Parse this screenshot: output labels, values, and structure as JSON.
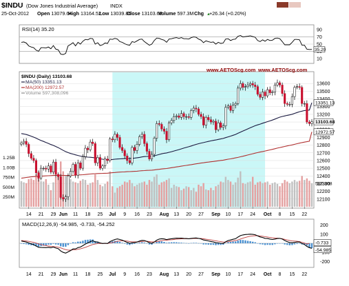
{
  "header": {
    "symbol": "$INDU",
    "name": "(Dow Jones Industrial Average)",
    "exchange": "INDX",
    "date": "25-Oct-2012",
    "stats": [
      {
        "label": "Open",
        "value": "13079.64"
      },
      {
        "label": "High",
        "value": "13164.52"
      },
      {
        "label": "Low",
        "value": "13039.86"
      },
      {
        "label": "Close",
        "value": "13103.68"
      },
      {
        "label": "Volume",
        "value": "597.3M"
      },
      {
        "label": "Chg",
        "value": "+26.34 (+0.20%)"
      }
    ],
    "change_arrow": "▲",
    "swatch_colors": [
      "#8b3a2a",
      "#e8c8c0"
    ]
  },
  "rsi_panel": {
    "legend": "RSI(14) 35.20",
    "last_label": "35.20",
    "tick_labels": [
      "90",
      "70",
      "50",
      "30",
      "10"
    ]
  },
  "price_panel": {
    "legend": [
      {
        "text": "$INDU (Daily) 13103.68",
        "color": "#000000"
      },
      {
        "text": "MA(50) 13351.13",
        "color": "#1a1a40"
      },
      {
        "text": "MA(200) 12972.57",
        "color": "#b03030"
      },
      {
        "text": "Volume 597,308,096",
        "color": "#888888"
      }
    ],
    "watermark": "www.AETOScg.com",
    "y_tick_labels": [
      "13600",
      "13500",
      "13400",
      "13300",
      "13200",
      "13100",
      "13000",
      "12900",
      "12800",
      "12700",
      "12600",
      "12500",
      "12400",
      "12300",
      "12200",
      "12100"
    ],
    "last_labels": [
      "13351.13",
      "13103.68",
      "12972.57",
      "597.308"
    ],
    "volume_tick_labels": [
      "1.25B",
      "1.00B",
      "750M",
      "500M",
      "250M"
    ]
  },
  "macd_panel": {
    "legend": "MACD(12,26,9) -54.985, -0.733, -54.252",
    "last_labels": [
      "-0.733",
      "-54.985"
    ],
    "tick_labels": [
      "200",
      "100",
      "0",
      "-100",
      "-200"
    ]
  },
  "x_axis": {
    "tick_labels": [
      "14",
      "21",
      "29",
      "Jun",
      "11",
      "18",
      "25",
      "Jul",
      "9",
      "16",
      "23",
      "Aug",
      "13",
      "20",
      "27",
      "Sep",
      "10",
      "17",
      "24",
      "Oct",
      "8",
      "15",
      "22"
    ]
  },
  "colors": {
    "up_candle": "#ffffff",
    "down_candle": "#c8102e",
    "ma50": "#1a1a40",
    "ma200": "#b03030",
    "rsi_line": "#000000",
    "volume_up": "#c0c0c0",
    "volume_down": "#e4a0a0",
    "macd_line": "#000000",
    "signal_line": "#c04040",
    "histogram": "#4a90d0",
    "highlight": "#b8f4f4",
    "watermark": "#8b0000",
    "grid": "#dcdcdc"
  },
  "chart_data": {
    "type": "candlestick",
    "price_ylim": [
      12000,
      13700
    ],
    "rsi_ylim": [
      0,
      100
    ],
    "macd_ylim": [
      -250,
      250
    ],
    "volume_ylim": [
      0,
      1400000000
    ],
    "grid": true,
    "highlight_range_dates": [
      "2012-07-02",
      "2012-09-28"
    ],
    "dates": [
      "2012-05-09",
      "2012-05-10",
      "2012-05-11",
      "2012-05-14",
      "2012-05-15",
      "2012-05-16",
      "2012-05-17",
      "2012-05-18",
      "2012-05-21",
      "2012-05-22",
      "2012-05-23",
      "2012-05-24",
      "2012-05-25",
      "2012-05-29",
      "2012-05-30",
      "2012-05-31",
      "2012-06-01",
      "2012-06-04",
      "2012-06-05",
      "2012-06-06",
      "2012-06-07",
      "2012-06-08",
      "2012-06-11",
      "2012-06-12",
      "2012-06-13",
      "2012-06-14",
      "2012-06-15",
      "2012-06-18",
      "2012-06-19",
      "2012-06-20",
      "2012-06-21",
      "2012-06-22",
      "2012-06-25",
      "2012-06-26",
      "2012-06-27",
      "2012-06-28",
      "2012-06-29",
      "2012-07-02",
      "2012-07-03",
      "2012-07-05",
      "2012-07-06",
      "2012-07-09",
      "2012-07-10",
      "2012-07-11",
      "2012-07-12",
      "2012-07-13",
      "2012-07-16",
      "2012-07-17",
      "2012-07-18",
      "2012-07-19",
      "2012-07-20",
      "2012-07-23",
      "2012-07-24",
      "2012-07-25",
      "2012-07-26",
      "2012-07-27",
      "2012-07-30",
      "2012-07-31",
      "2012-08-01",
      "2012-08-02",
      "2012-08-03",
      "2012-08-06",
      "2012-08-07",
      "2012-08-08",
      "2012-08-09",
      "2012-08-10",
      "2012-08-13",
      "2012-08-14",
      "2012-08-15",
      "2012-08-16",
      "2012-08-17",
      "2012-08-20",
      "2012-08-21",
      "2012-08-22",
      "2012-08-23",
      "2012-08-24",
      "2012-08-27",
      "2012-08-28",
      "2012-08-29",
      "2012-08-30",
      "2012-08-31",
      "2012-09-04",
      "2012-09-05",
      "2012-09-06",
      "2012-09-07",
      "2012-09-10",
      "2012-09-11",
      "2012-09-12",
      "2012-09-13",
      "2012-09-14",
      "2012-09-17",
      "2012-09-18",
      "2012-09-19",
      "2012-09-20",
      "2012-09-21",
      "2012-09-24",
      "2012-09-25",
      "2012-09-26",
      "2012-09-27",
      "2012-09-28",
      "2012-10-01",
      "2012-10-02",
      "2012-10-03",
      "2012-10-04",
      "2012-10-05",
      "2012-10-08",
      "2012-10-09",
      "2012-10-10",
      "2012-10-11",
      "2012-10-12",
      "2012-10-15",
      "2012-10-16",
      "2012-10-17",
      "2012-10-18",
      "2012-10-19",
      "2012-10-22",
      "2012-10-23",
      "2012-10-24",
      "2012-10-25"
    ],
    "close": [
      12830,
      12850,
      12810,
      12690,
      12630,
      12600,
      12440,
      12370,
      12500,
      12500,
      12490,
      12530,
      12450,
      12580,
      12420,
      12390,
      12120,
      12100,
      12130,
      12400,
      12460,
      12550,
      12410,
      12570,
      12500,
      12650,
      12760,
      12740,
      12840,
      12820,
      12570,
      12640,
      12500,
      12530,
      12620,
      12600,
      12880,
      12870,
      12940,
      12900,
      12770,
      12730,
      12660,
      12600,
      12570,
      12770,
      12730,
      12810,
      12910,
      12940,
      12820,
      12720,
      12620,
      12680,
      12890,
      13080,
      13070,
      13010,
      12980,
      12870,
      13090,
      13120,
      13170,
      13180,
      13160,
      13210,
      13170,
      13170,
      13160,
      13250,
      13280,
      13270,
      13200,
      13170,
      13060,
      13160,
      13130,
      13100,
      13110,
      13000,
      13090,
      13030,
      13050,
      13290,
      13310,
      13250,
      13320,
      13340,
      13540,
      13600,
      13550,
      13560,
      13580,
      13600,
      13580,
      13560,
      13460,
      13420,
      13490,
      13440,
      13520,
      13480,
      13490,
      13580,
      13610,
      13580,
      13470,
      13340,
      13330,
      13330,
      13430,
      13550,
      13560,
      13550,
      13340,
      13340,
      13100,
      13080,
      13104
    ]
  },
  "chart_data_panels": {
    "ma50": [
      12950,
      12945,
      12938,
      12928,
      12916,
      12904,
      12890,
      12875,
      12860,
      12848,
      12835,
      12822,
      12808,
      12796,
      12782,
      12768,
      12750,
      12732,
      12716,
      12703,
      12692,
      12684,
      12674,
      12666,
      12658,
      12652,
      12648,
      12644,
      12642,
      12639,
      12634,
      12629,
      12622,
      12617,
      12613,
      12610,
      12612,
      12614,
      12617,
      12620,
      12622,
      12624,
      12625,
      12626,
      12626,
      12629,
      12632,
      12636,
      12641,
      12647,
      12651,
      12653,
      12654,
      12656,
      12661,
      12670,
      12679,
      12687,
      12694,
      12699,
      12707,
      12715,
      12724,
      12733,
      12742,
      12752,
      12761,
      12770,
      12779,
      12789,
      12800,
      12810,
      12819,
      12827,
      12833,
      12841,
      12848,
      12855,
      12862,
      12867,
      12874,
      12880,
      12887,
      12897,
      12907,
      12917,
      12928,
      12939,
      12954,
      12969,
      12983,
      12997,
      13011,
      13025,
      13039,
      13052,
      13063,
      13073,
      13084,
      13094,
      13105,
      13115,
      13126,
      13138,
      13151,
      13163,
      13172,
      13179,
      13186,
      13193,
      13201,
      13212,
      13223,
      13234,
      13241,
      13249,
      13252,
      13255,
      13351
    ],
    "ma200": [
      12370,
      12375,
      12380,
      12384,
      12388,
      12391,
      12393,
      12395,
      12397,
      12399,
      12401,
      12403,
      12404,
      12406,
      12407,
      12408,
      12408,
      12407,
      12406,
      12407,
      12408,
      12410,
      12411,
      12413,
      12414,
      12416,
      12419,
      12422,
      12425,
      12428,
      12429,
      12431,
      12432,
      12433,
      12435,
      12436,
      12439,
      12442,
      12445,
      12448,
      12450,
      12452,
      12453,
      12455,
      12456,
      12458,
      12460,
      12462,
      12465,
      12468,
      12470,
      12472,
      12473,
      12475,
      12478,
      12482,
      12486,
      12490,
      12494,
      12497,
      12502,
      12507,
      12512,
      12517,
      12522,
      12527,
      12532,
      12537,
      12542,
      12547,
      12552,
      12557,
      12562,
      12567,
      12571,
      12576,
      12580,
      12584,
      12588,
      12592,
      12597,
      12601,
      12605,
      12611,
      12617,
      12622,
      12628,
      12634,
      12641,
      12649,
      12656,
      12664,
      12672,
      12680,
      12688,
      12696,
      12703,
      12710,
      12717,
      12724,
      12731,
      12738,
      12745,
      12753,
      12761,
      12769,
      12776,
      12783,
      12790,
      12796,
      12803,
      12811,
      12819,
      12826,
      12833,
      12839,
      12845,
      12851,
      12972
    ],
    "rsi": [
      55,
      56,
      53,
      45,
      42,
      40,
      33,
      30,
      40,
      40,
      39,
      42,
      37,
      46,
      36,
      34,
      22,
      21,
      24,
      45,
      49,
      54,
      45,
      55,
      50,
      58,
      63,
      62,
      66,
      65,
      50,
      54,
      46,
      48,
      53,
      52,
      64,
      63,
      66,
      64,
      57,
      55,
      51,
      48,
      47,
      57,
      55,
      59,
      63,
      64,
      57,
      52,
      47,
      50,
      60,
      67,
      66,
      63,
      61,
      55,
      64,
      65,
      67,
      68,
      66,
      68,
      65,
      65,
      64,
      68,
      70,
      69,
      64,
      61,
      54,
      59,
      57,
      55,
      56,
      50,
      55,
      52,
      53,
      64,
      65,
      60,
      63,
      64,
      72,
      74,
      70,
      71,
      72,
      73,
      71,
      69,
      60,
      57,
      62,
      58,
      63,
      60,
      61,
      66,
      67,
      65,
      57,
      48,
      48,
      48,
      55,
      63,
      63,
      62,
      47,
      47,
      36,
      35,
      35.2
    ],
    "volume": [
      650,
      620,
      600,
      700,
      720,
      680,
      820,
      900,
      650,
      640,
      700,
      560,
      420,
      620,
      760,
      820,
      1150,
      900,
      780,
      760,
      700,
      640,
      620,
      600,
      660,
      700,
      680,
      560,
      600,
      620,
      820,
      680,
      560,
      520,
      580,
      640,
      900,
      520,
      360,
      480,
      520,
      560,
      640,
      620,
      680,
      600,
      520,
      560,
      600,
      620,
      640,
      560,
      680,
      640,
      760,
      820,
      560,
      620,
      640,
      680,
      720,
      480,
      560,
      520,
      500,
      420,
      460,
      520,
      500,
      420,
      480,
      380,
      560,
      520,
      600,
      440,
      420,
      480,
      420,
      520,
      560,
      640,
      620,
      760,
      680,
      640,
      560,
      620,
      740,
      900,
      600,
      580,
      620,
      640,
      760,
      560,
      620,
      640,
      600,
      620,
      640,
      560,
      600,
      620,
      580,
      520,
      600,
      680,
      640,
      600,
      640,
      680,
      640,
      660,
      780,
      680,
      720,
      660,
      597
    ]
  },
  "chart_data_macd": {
    "macd": [
      25,
      20,
      14,
      4,
      -6,
      -15,
      -30,
      -44,
      -46,
      -47,
      -48,
      -45,
      -50,
      -42,
      -52,
      -60,
      -85,
      -100,
      -108,
      -95,
      -80,
      -62,
      -62,
      -48,
      -42,
      -26,
      -8,
      4,
      18,
      28,
      16,
      14,
      4,
      -2,
      0,
      -2,
      18,
      30,
      42,
      48,
      42,
      34,
      22,
      10,
      0,
      6,
      8,
      14,
      24,
      32,
      30,
      20,
      6,
      0,
      14,
      34,
      46,
      50,
      48,
      40,
      46,
      50,
      54,
      56,
      55,
      56,
      54,
      52,
      50,
      54,
      57,
      58,
      54,
      48,
      36,
      32,
      26,
      20,
      15,
      6,
      4,
      0,
      -2,
      16,
      30,
      36,
      44,
      50,
      68,
      84,
      92,
      96,
      98,
      100,
      98,
      94,
      82,
      70,
      64,
      54,
      52,
      46,
      42,
      46,
      52,
      54,
      46,
      30,
      18,
      8,
      6,
      10,
      14,
      14,
      -2,
      -14,
      -34,
      -48,
      -55
    ],
    "signal": [
      30,
      28,
      25,
      21,
      16,
      10,
      2,
      -7,
      -15,
      -21,
      -26,
      -30,
      -34,
      -36,
      -39,
      -43,
      -51,
      -61,
      -70,
      -75,
      -76,
      -73,
      -71,
      -66,
      -61,
      -54,
      -45,
      -35,
      -24,
      -14,
      -8,
      -3,
      -2,
      -2,
      -2,
      -2,
      2,
      8,
      15,
      22,
      26,
      28,
      27,
      24,
      19,
      17,
      15,
      15,
      17,
      20,
      22,
      22,
      19,
      15,
      15,
      19,
      24,
      29,
      33,
      34,
      37,
      39,
      42,
      45,
      47,
      49,
      50,
      50,
      50,
      51,
      52,
      53,
      53,
      52,
      49,
      45,
      41,
      37,
      32,
      27,
      22,
      18,
      14,
      14,
      17,
      21,
      25,
      30,
      38,
      47,
      56,
      64,
      71,
      77,
      81,
      83,
      83,
      80,
      77,
      73,
      69,
      64,
      60,
      57,
      56,
      54,
      49,
      43,
      36,
      30,
      26,
      24,
      22,
      18,
      11,
      2,
      -8,
      -0.7
    ],
    "histogram": [
      -5,
      -8,
      -11,
      -17,
      -22,
      -25,
      -32,
      -37,
      -31,
      -26,
      -22,
      -15,
      -16,
      -6,
      -13,
      -17,
      -34,
      -39,
      -38,
      -20,
      -4,
      11,
      9,
      18,
      19,
      28,
      37,
      39,
      42,
      42,
      24,
      17,
      6,
      0,
      2,
      0,
      16,
      22,
      27,
      26,
      16,
      6,
      -5,
      -14,
      -19,
      -11,
      -7,
      -1,
      7,
      12,
      8,
      -2,
      -13,
      -15,
      -1,
      15,
      22,
      21,
      15,
      6,
      9,
      11,
      12,
      11,
      8,
      7,
      4,
      2,
      0,
      3,
      5,
      5,
      1,
      -4,
      -13,
      -13,
      -15,
      -17,
      -17,
      -21,
      -18,
      -18,
      -16,
      2,
      13,
      15,
      19,
      20,
      30,
      37,
      36,
      32,
      27,
      23,
      17,
      11,
      -1,
      -10,
      -13,
      -19,
      -17,
      -18,
      -18,
      -11,
      -4,
      0,
      -3,
      -13,
      -18,
      -22,
      -20,
      -12,
      -8,
      -4,
      -13,
      -16,
      -26,
      -50,
      -54
    ]
  }
}
